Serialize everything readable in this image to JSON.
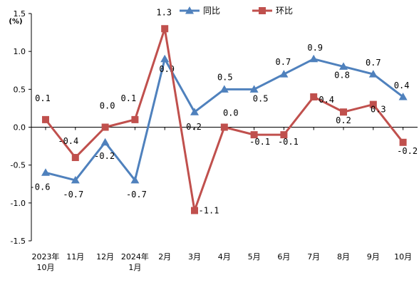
{
  "chart_data": {
    "type": "line",
    "unit": "(%)",
    "ylim": [
      -1.5,
      1.5
    ],
    "yticks": [
      "1.5",
      "1.0",
      "0.5",
      "0.0",
      "-0.5",
      "-1.0",
      "-1.5"
    ],
    "ytick_values": [
      1.5,
      1.0,
      0.5,
      0.0,
      -0.5,
      -1.0,
      -1.5
    ],
    "categories": [
      [
        "2023年",
        "10月"
      ],
      [
        "11月"
      ],
      [
        "12月"
      ],
      [
        "2024年",
        "1月"
      ],
      [
        "2月"
      ],
      [
        "3月"
      ],
      [
        "4月"
      ],
      [
        "5月"
      ],
      [
        "6月"
      ],
      [
        "7月"
      ],
      [
        "8月"
      ],
      [
        "9月"
      ],
      [
        "10月"
      ]
    ],
    "series": [
      {
        "name": "同比",
        "color": "#4F81BD",
        "marker": "triangle",
        "values": [
          -0.6,
          -0.7,
          -0.2,
          -0.7,
          0.9,
          0.2,
          0.5,
          0.5,
          0.7,
          0.9,
          0.8,
          0.7,
          0.4
        ],
        "labels": [
          "-0.6",
          "-0.7",
          "-0.2",
          "-0.7",
          "0.9",
          "0.2",
          "0.5",
          "0.5",
          "0.7",
          "0.9",
          "0.8",
          "0.7",
          "0.4"
        ]
      },
      {
        "name": "环比",
        "color": "#C0504D",
        "marker": "square",
        "values": [
          0.1,
          -0.4,
          0.0,
          0.1,
          1.3,
          -1.1,
          0.0,
          -0.1,
          -0.1,
          0.4,
          0.2,
          0.3,
          -0.2
        ],
        "labels": [
          "0.1",
          "-0.4",
          "0.0",
          "0.1",
          "1.3",
          "-1.1",
          "0.0",
          "-0.1",
          "-0.1",
          "0.4",
          "0.2",
          "0.3",
          "-0.2"
        ]
      }
    ],
    "legend_position": "top-right",
    "grid": false
  }
}
